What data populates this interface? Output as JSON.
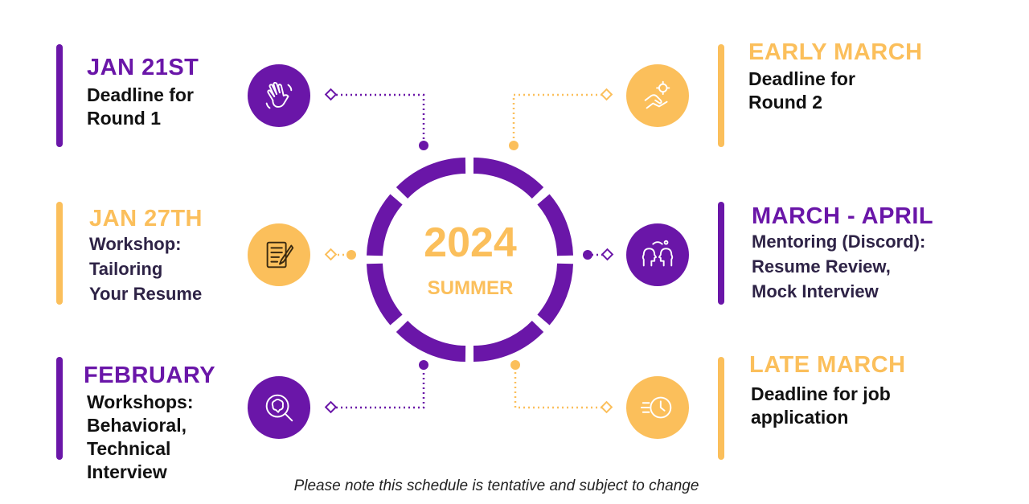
{
  "center": {
    "year": "2024",
    "season": "SUMMER"
  },
  "colors": {
    "purple": "#6a16a8",
    "gold": "#fbbf5b"
  },
  "milestones": [
    {
      "date": "JAN 21ST",
      "lines": [
        "Deadline for",
        "Round 1"
      ],
      "accent": "purple",
      "icon": "waving-hand-icon"
    },
    {
      "date": "JAN 27TH",
      "lines": [
        "Workshop:",
        "Tailoring",
        "Your Resume"
      ],
      "accent": "gold",
      "icon": "resume-edit-icon"
    },
    {
      "date": "FEBRUARY",
      "lines": [
        "Workshops:",
        "Behavioral,",
        "Technical",
        "Interview"
      ],
      "accent": "purple",
      "icon": "brain-search-icon"
    },
    {
      "date": "EARLY MARCH",
      "lines": [
        "Deadline for",
        "Round 2"
      ],
      "accent": "gold",
      "icon": "gear-hand-icon"
    },
    {
      "date": "MARCH - APRIL",
      "lines": [
        "Mentoring (Discord):",
        "Resume Review,",
        "Mock Interview"
      ],
      "accent": "purple",
      "icon": "mentoring-heads-icon"
    },
    {
      "date": "LATE MARCH",
      "lines": [
        "Deadline for job",
        "application"
      ],
      "accent": "gold",
      "icon": "fast-clock-icon"
    }
  ],
  "note": "Please note this schedule is tentative and subject to change"
}
